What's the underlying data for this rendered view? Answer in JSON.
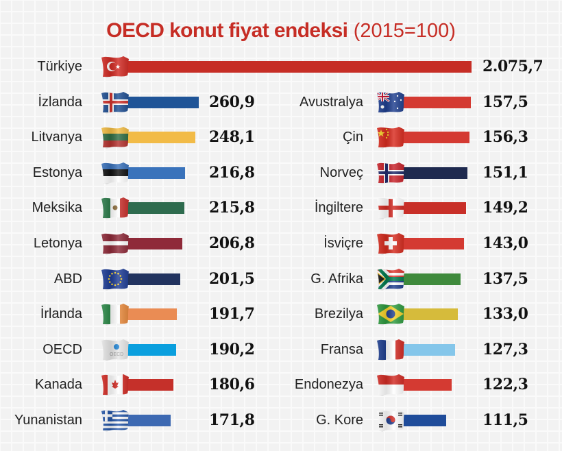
{
  "title": {
    "bold": "OECD konut fiyat endeksi",
    "light": "(2015=100)"
  },
  "chart_data": {
    "type": "bar",
    "orientation": "horizontal",
    "title": "OECD konut fiyat endeksi (2015=100)",
    "xlabel": "",
    "ylabel": "",
    "grid": true,
    "legend": null,
    "categories": [
      "Türkiye",
      "İzlanda",
      "Litvanya",
      "Estonya",
      "Meksika",
      "Letonya",
      "ABD",
      "İrlanda",
      "OECD",
      "Kanada",
      "Yunanistan",
      "Avustralya",
      "Çin",
      "Norveç",
      "İngiltere",
      "İsviçre",
      "G. Afrika",
      "Brezilya",
      "Fransa",
      "Endonezya",
      "G. Kore"
    ],
    "values": [
      2075.7,
      260.9,
      248.1,
      216.8,
      215.8,
      206.8,
      201.5,
      191.7,
      190.2,
      180.6,
      171.8,
      157.5,
      156.3,
      151.1,
      149.2,
      143.0,
      137.5,
      133.0,
      127.3,
      122.3,
      111.5
    ],
    "value_labels": [
      "2.075,7",
      "260,9",
      "248,1",
      "216,8",
      "215,8",
      "206,8",
      "201,5",
      "191,7",
      "190,2",
      "180,6",
      "171,8",
      "157,5",
      "156,3",
      "151,1",
      "149,2",
      "143,0",
      "137,5",
      "133,0",
      "127,3",
      "122,3",
      "111,5"
    ]
  },
  "top": {
    "label": "Türkiye",
    "value": "2.075,7",
    "color": "#c62d25",
    "flag": "turkey-flag"
  },
  "left": [
    {
      "label": "İzlanda",
      "value": "260,9",
      "color": "#1f5497",
      "flag": "iceland-flag",
      "bar_end": 290
    },
    {
      "label": "Litvanya",
      "value": "248,1",
      "color": "#f2bb47",
      "flag": "lithuania-flag",
      "bar_end": 285
    },
    {
      "label": "Estonya",
      "value": "216,8",
      "color": "#3a73bb",
      "flag": "estonia-flag",
      "bar_end": 270
    },
    {
      "label": "Meksika",
      "value": "215,8",
      "color": "#2e6b4e",
      "flag": "mexico-flag",
      "bar_end": 269
    },
    {
      "label": "Letonya",
      "value": "206,8",
      "color": "#8f2a39",
      "flag": "latvia-flag",
      "bar_end": 266
    },
    {
      "label": "ABD",
      "value": "201,5",
      "color": "#22335f",
      "flag": "eu-flag",
      "bar_end": 263
    },
    {
      "label": "İrlanda",
      "value": "191,7",
      "color": "#ea8c54",
      "flag": "ireland-flag",
      "bar_end": 258
    },
    {
      "label": "OECD",
      "value": "190,2",
      "color": "#0a9fde",
      "flag": "oecd-flag",
      "bar_end": 257
    },
    {
      "label": "Kanada",
      "value": "180,6",
      "color": "#c5302a",
      "flag": "canada-flag",
      "bar_end": 253
    },
    {
      "label": "Yunanistan",
      "value": "171,8",
      "color": "#3d69b2",
      "flag": "greece-flag",
      "bar_end": 249
    }
  ],
  "right": [
    {
      "label": "Avustralya",
      "value": "157,5",
      "color": "#d43a32",
      "flag": "australia-flag",
      "bar_end": 687
    },
    {
      "label": "Çin",
      "value": "156,3",
      "color": "#d43a32",
      "flag": "china-flag",
      "bar_end": 685
    },
    {
      "label": "Norveç",
      "value": "151,1",
      "color": "#1f2a4f",
      "flag": "norway-flag",
      "bar_end": 682
    },
    {
      "label": "İngiltere",
      "value": "149,2",
      "color": "#c82f28",
      "flag": "england-flag",
      "bar_end": 680
    },
    {
      "label": "İsviçre",
      "value": "143,0",
      "color": "#d43a32",
      "flag": "switzerland-flag",
      "bar_end": 677
    },
    {
      "label": "G. Afrika",
      "value": "137,5",
      "color": "#3f8a3c",
      "flag": "south-africa-flag",
      "bar_end": 672
    },
    {
      "label": "Brezilya",
      "value": "133,0",
      "color": "#d6bb3b",
      "flag": "brazil-flag",
      "bar_end": 668
    },
    {
      "label": "Fransa",
      "value": "127,3",
      "color": "#84c6ea",
      "flag": "france-flag",
      "bar_end": 664
    },
    {
      "label": "Endonezya",
      "value": "122,3",
      "color": "#d43a32",
      "flag": "indonesia-flag",
      "bar_end": 659
    },
    {
      "label": "G. Kore",
      "value": "111,5",
      "color": "#1f4c9a",
      "flag": "south-korea-flag",
      "bar_end": 651
    }
  ]
}
